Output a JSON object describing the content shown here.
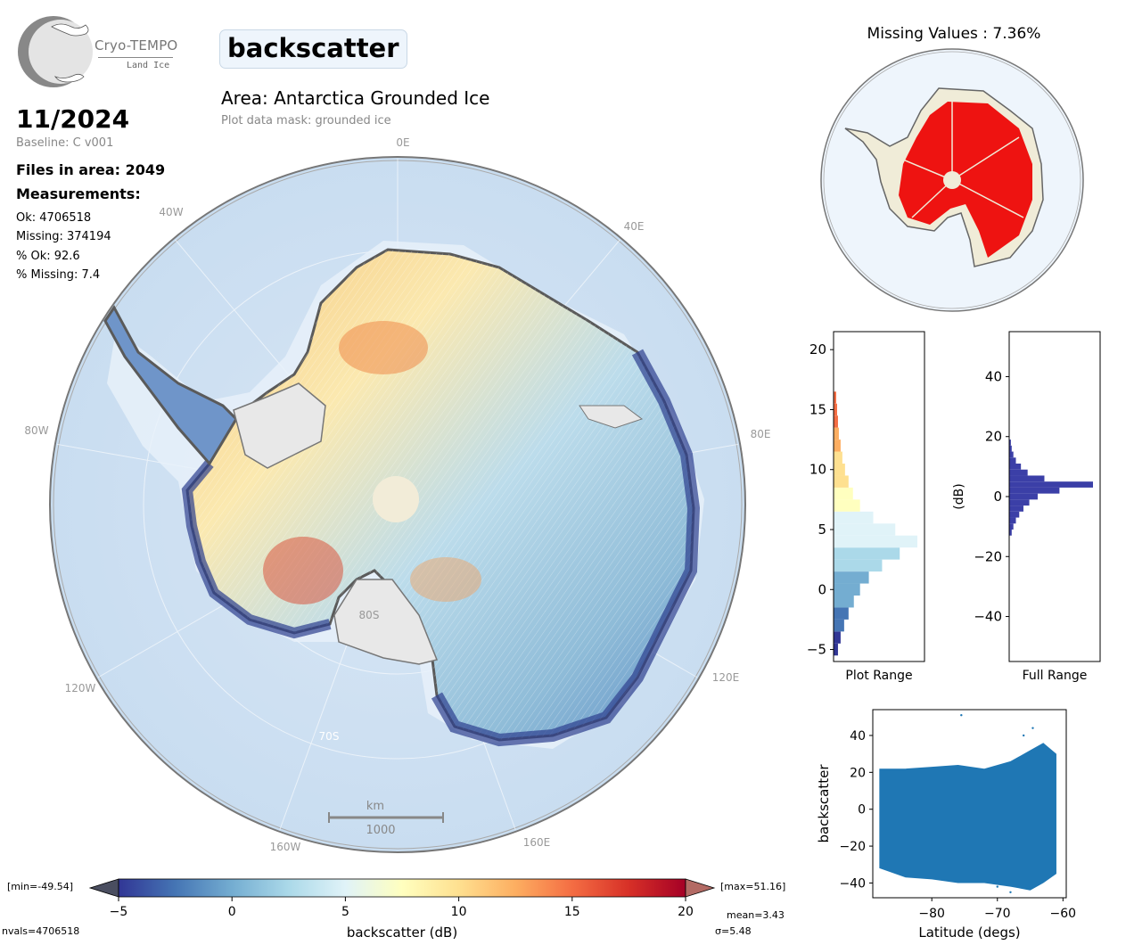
{
  "header": {
    "logo_title": "Cryo-TEMPO",
    "logo_subtitle": "Land Ice",
    "parameter": "backscatter",
    "area_title": "Area: Antarctica Grounded Ice",
    "mask_note": "Plot data mask: grounded ice"
  },
  "info": {
    "date": "11/2024",
    "baseline": "Baseline: C v001",
    "files": "Files in area: 2049",
    "measurements_heading": "Measurements:",
    "ok": "Ok: 4706518",
    "missing": "Missing: 374194",
    "pct_ok": "% Ok: 92.6",
    "pct_missing": "% Missing: 7.4"
  },
  "map": {
    "longitude_labels": [
      "0E",
      "40E",
      "80E",
      "120E",
      "160E",
      "160W",
      "120W",
      "80W",
      "40W"
    ],
    "latitude_labels": [
      "80S",
      "70S"
    ],
    "scalebar_unit": "km",
    "scalebar_value": "1000"
  },
  "missing_map": {
    "title": "Missing Values : 7.36%"
  },
  "colorbar": {
    "label": "backscatter (dB)",
    "ticks": [
      "−5",
      "0",
      "5",
      "10",
      "15",
      "20"
    ],
    "min_label": "[min=-49.54]",
    "max_label": "[max=51.16]",
    "mean_label": "mean=3.43",
    "sigma_label": "σ=5.48",
    "nvals_label": "nvals=4706518",
    "colors": [
      "#313695",
      "#4575b4",
      "#74add1",
      "#abd9e9",
      "#e0f3f8",
      "#ffffbf",
      "#fee090",
      "#fdae61",
      "#f46d43",
      "#d73027",
      "#a50026"
    ]
  },
  "chart_data": [
    {
      "type": "bar",
      "name": "plot-range-histogram",
      "xlabel": "Plot Range",
      "ylabel": "",
      "ylim": [
        -6,
        21.5
      ],
      "yticks": [
        "−5",
        "0",
        "5",
        "10",
        "15",
        "20"
      ],
      "orientation": "horizontal",
      "bins": [
        {
          "y": -5,
          "v": 0.05
        },
        {
          "y": -4,
          "v": 0.08
        },
        {
          "y": -3,
          "v": 0.12
        },
        {
          "y": -2,
          "v": 0.17
        },
        {
          "y": -1,
          "v": 0.23
        },
        {
          "y": 0,
          "v": 0.3
        },
        {
          "y": 1,
          "v": 0.4
        },
        {
          "y": 2,
          "v": 0.55
        },
        {
          "y": 3,
          "v": 0.75
        },
        {
          "y": 4,
          "v": 0.95
        },
        {
          "y": 5,
          "v": 0.7
        },
        {
          "y": 6,
          "v": 0.45
        },
        {
          "y": 7,
          "v": 0.3
        },
        {
          "y": 8,
          "v": 0.22
        },
        {
          "y": 9,
          "v": 0.17
        },
        {
          "y": 10,
          "v": 0.13
        },
        {
          "y": 11,
          "v": 0.1
        },
        {
          "y": 12,
          "v": 0.08
        },
        {
          "y": 13,
          "v": 0.06
        },
        {
          "y": 14,
          "v": 0.05
        },
        {
          "y": 15,
          "v": 0.04
        },
        {
          "y": 16,
          "v": 0.03
        }
      ]
    },
    {
      "type": "bar",
      "name": "full-range-histogram",
      "xlabel": "Full Range",
      "ylabel": "(dB)",
      "ylim": [
        -55,
        55
      ],
      "yticks": [
        "−40",
        "−20",
        "0",
        "20",
        "40"
      ],
      "orientation": "horizontal",
      "color": "#3b3fa7",
      "bins": [
        {
          "y": -12,
          "v": 0.03
        },
        {
          "y": -10,
          "v": 0.05
        },
        {
          "y": -8,
          "v": 0.08
        },
        {
          "y": -6,
          "v": 0.12
        },
        {
          "y": -4,
          "v": 0.17
        },
        {
          "y": -2,
          "v": 0.24
        },
        {
          "y": 0,
          "v": 0.34
        },
        {
          "y": 2,
          "v": 0.6
        },
        {
          "y": 4,
          "v": 1.0
        },
        {
          "y": 6,
          "v": 0.42
        },
        {
          "y": 8,
          "v": 0.22
        },
        {
          "y": 10,
          "v": 0.14
        },
        {
          "y": 12,
          "v": 0.08
        },
        {
          "y": 14,
          "v": 0.05
        },
        {
          "y": 16,
          "v": 0.03
        },
        {
          "y": 18,
          "v": 0.02
        }
      ]
    },
    {
      "type": "scatter",
      "name": "latitude-scatter",
      "xlabel": "Latitude (degs)",
      "ylabel": "backscatter",
      "xlim": [
        -89,
        -59.5
      ],
      "ylim": [
        -48,
        54
      ],
      "xticks": [
        "−80",
        "−70",
        "−60"
      ],
      "yticks": [
        "−40",
        "−20",
        "0",
        "20",
        "40"
      ],
      "color": "#1f77b4",
      "band": {
        "x": [
          -88,
          -84,
          -80,
          -76,
          -72,
          -68,
          -65,
          -63,
          -61
        ],
        "upper": [
          22,
          22,
          23,
          24,
          22,
          26,
          32,
          36,
          30
        ],
        "lower": [
          -32,
          -37,
          -38,
          -40,
          -40,
          -42,
          -44,
          -40,
          -35
        ]
      },
      "outliers": [
        [
          -75.5,
          51
        ],
        [
          -64.6,
          44
        ],
        [
          -66,
          40
        ],
        [
          -70,
          -42
        ],
        [
          -68,
          -45
        ],
        [
          -61.5,
          15
        ]
      ]
    }
  ]
}
